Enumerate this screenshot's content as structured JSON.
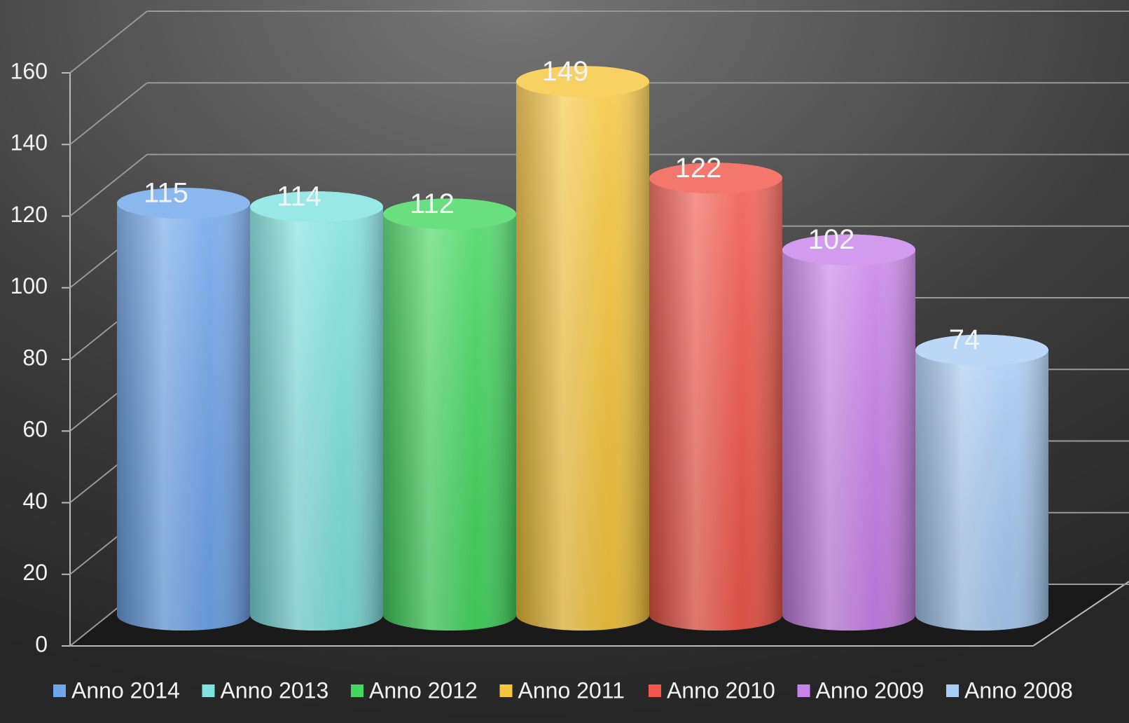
{
  "chart_data": {
    "type": "bar",
    "categories": [
      null
    ],
    "series": [
      {
        "name": "Anno 2014",
        "color": "#6fa6ec",
        "values": [
          115
        ]
      },
      {
        "name": "Anno 2013",
        "color": "#7fe3df",
        "values": [
          114
        ]
      },
      {
        "name": "Anno 2012",
        "color": "#44d860",
        "values": [
          112
        ]
      },
      {
        "name": "Anno 2011",
        "color": "#f7c63c",
        "values": [
          149
        ]
      },
      {
        "name": "Anno 2010",
        "color": "#f2564a",
        "values": [
          122
        ]
      },
      {
        "name": "Anno 2009",
        "color": "#c982ea",
        "values": [
          102
        ]
      },
      {
        "name": "Anno 2008",
        "color": "#a9cdf5",
        "values": [
          74
        ]
      }
    ],
    "ylim": [
      0,
      160
    ],
    "yticks": [
      0,
      20,
      40,
      60,
      80,
      100,
      120,
      140,
      160
    ],
    "grid": true,
    "legend": "bottom"
  }
}
